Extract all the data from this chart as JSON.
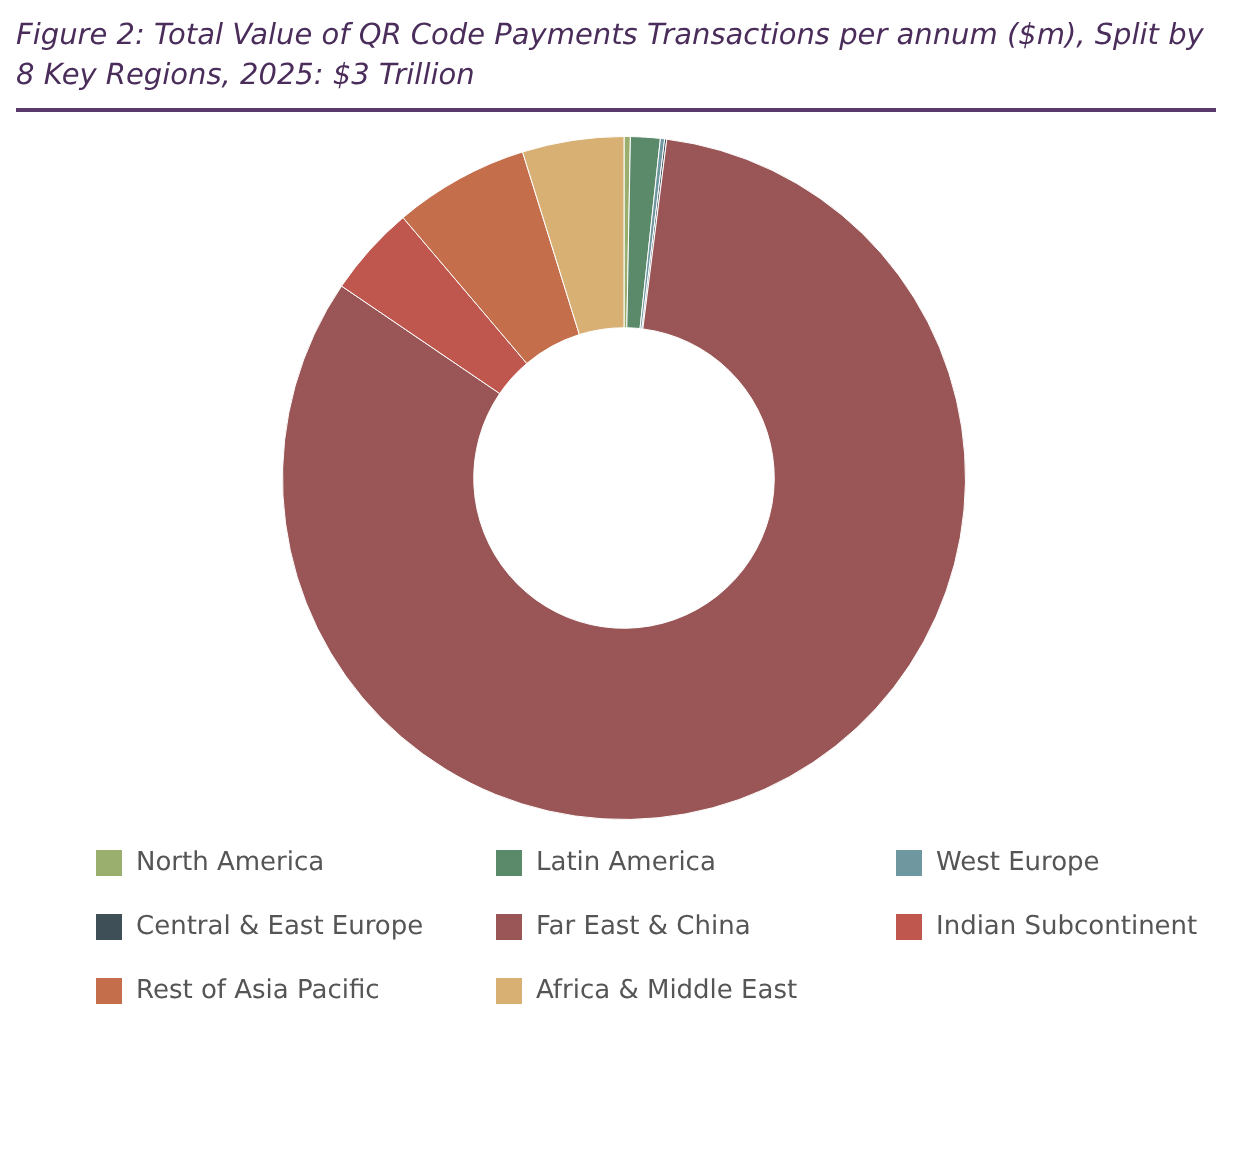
{
  "chart_data": {
    "type": "donut",
    "title": "Figure 2: Total Value of QR Code Payments Transactions per annum ($m), Split by 8 Key Regions, 2025: $3 Trillion",
    "categories": [
      "North America",
      "Latin America",
      "West Europe",
      "Central & East Europe",
      "Far East & China",
      "Indian Subcontinent",
      "Rest of Asia Pacific",
      "Africa & Middle East"
    ],
    "values": [
      0.3,
      1.4,
      0.2,
      0.1,
      82.5,
      4.3,
      6.4,
      4.8
    ],
    "colors": [
      "#9aae6e",
      "#5a8a6a",
      "#6e97a0",
      "#3f4f58",
      "#9a5656",
      "#c0574e",
      "#c46e4c",
      "#d8b074"
    ],
    "legend": "bottom"
  }
}
